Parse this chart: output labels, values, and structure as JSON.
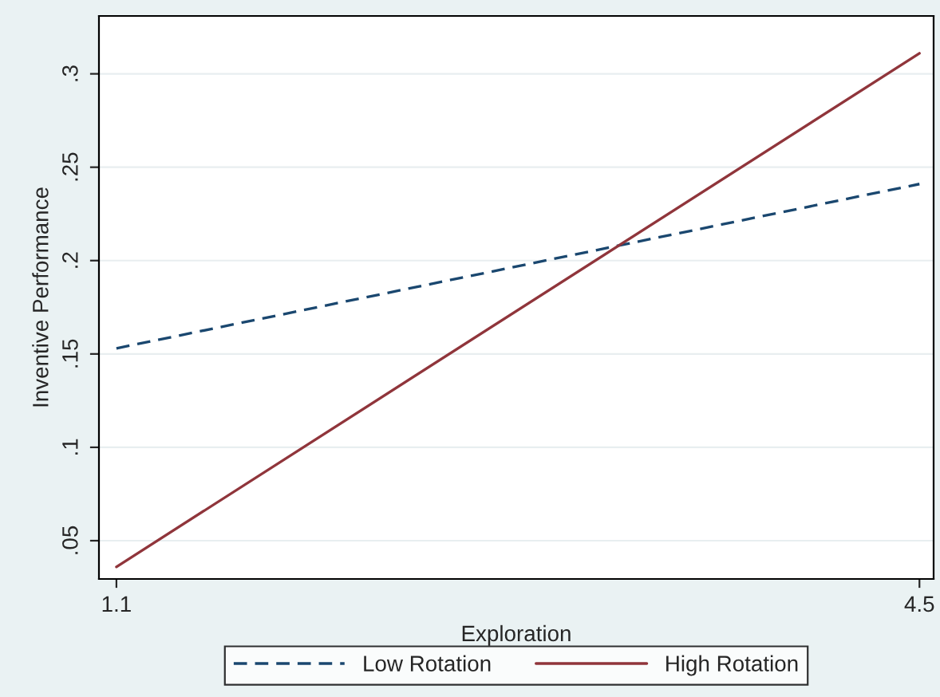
{
  "chart_data": {
    "type": "line",
    "xlabel": "Exploration",
    "ylabel": "Inventive Performance",
    "x": [
      1.1,
      4.5
    ],
    "series": [
      {
        "name": "Low Rotation",
        "color": "#1a476f",
        "line_style": "dashed",
        "values": [
          0.153,
          0.241
        ]
      },
      {
        "name": "High Rotation",
        "color": "#90353b",
        "line_style": "solid",
        "values": [
          0.036,
          0.311
        ]
      }
    ],
    "xlim": [
      1.026,
      4.56
    ],
    "xticks": [
      1.1,
      4.5
    ],
    "ylim": [
      0.0295,
      0.331
    ],
    "yticks": [
      {
        "value": 0.05,
        "label": ".05"
      },
      {
        "value": 0.1,
        "label": ".1"
      },
      {
        "value": 0.15,
        "label": ".15"
      },
      {
        "value": 0.2,
        "label": ".2"
      },
      {
        "value": 0.25,
        "label": ".25"
      },
      {
        "value": 0.3,
        "label": ".3"
      }
    ],
    "grid": "y",
    "legend": "bottom",
    "marker": "none"
  }
}
